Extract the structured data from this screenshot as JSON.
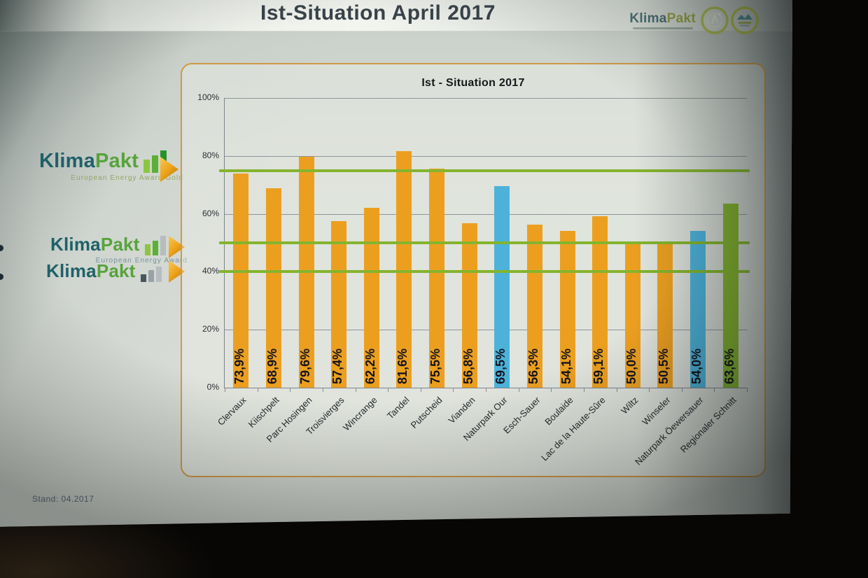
{
  "slide": {
    "title": "Ist-Situation April 2017",
    "footer": "Stand: 04.2017"
  },
  "header_logo": {
    "klima": "Klima",
    "pakt": "Pakt"
  },
  "left_logos": [
    {
      "klima": "Klima",
      "pakt": "Pakt",
      "subtitle": "European Energy Award Gold"
    },
    {
      "klima": "Klima",
      "pakt": "Pakt",
      "subtitle": "European Energy Award"
    },
    {
      "klima": "Klima",
      "pakt": "Pakt",
      "subtitle": ""
    }
  ],
  "chart_data": {
    "type": "bar",
    "title": "Ist - Situation 2017",
    "categories": [
      "Clervaux",
      "Kiischpelt",
      "Parc Hosingen",
      "Troisvierges",
      "Wincrange",
      "Tandel",
      "Putscheid",
      "Vianden",
      "Naturpark Our",
      "Esch-Sauer",
      "Boulaide",
      "Lac de la Haute-Sûre",
      "Wiltz",
      "Winseler",
      "Naturpark Öewersauer",
      "Regionaler Schnitt"
    ],
    "values": [
      73.9,
      68.9,
      79.6,
      57.4,
      62.2,
      81.6,
      75.5,
      56.8,
      69.5,
      56.3,
      54.1,
      59.1,
      50.0,
      50.5,
      54.0,
      63.6
    ],
    "value_labels": [
      "73,9%",
      "68,9%",
      "79,6%",
      "57,4%",
      "62,2%",
      "81,6%",
      "75,5%",
      "56,8%",
      "69,5%",
      "56,3%",
      "54,1%",
      "59,1%",
      "50,0%",
      "50,5%",
      "54,0%",
      "63,6%"
    ],
    "bar_color_keys": [
      "orange",
      "orange",
      "orange",
      "orange",
      "orange",
      "orange",
      "orange",
      "orange",
      "blue",
      "orange",
      "orange",
      "orange",
      "orange",
      "orange",
      "blue",
      "green"
    ],
    "palette": {
      "orange": "#ec9f1f",
      "blue": "#4cb2da",
      "green": "#82b42e"
    },
    "threshold_lines": [
      75,
      50,
      40
    ],
    "threshold_color": "#84b42e",
    "y_ticks": [
      {
        "label": "100%",
        "value": 100
      },
      {
        "label": "80%",
        "value": 80
      },
      {
        "label": "60%",
        "value": 60
      },
      {
        "label": "40%",
        "value": 40
      },
      {
        "label": "20%",
        "value": 20
      },
      {
        "label": "0%",
        "value": 0
      }
    ],
    "ylim": [
      0,
      100
    ],
    "grid": true,
    "legend": "none",
    "xlabel": "",
    "ylabel": ""
  }
}
